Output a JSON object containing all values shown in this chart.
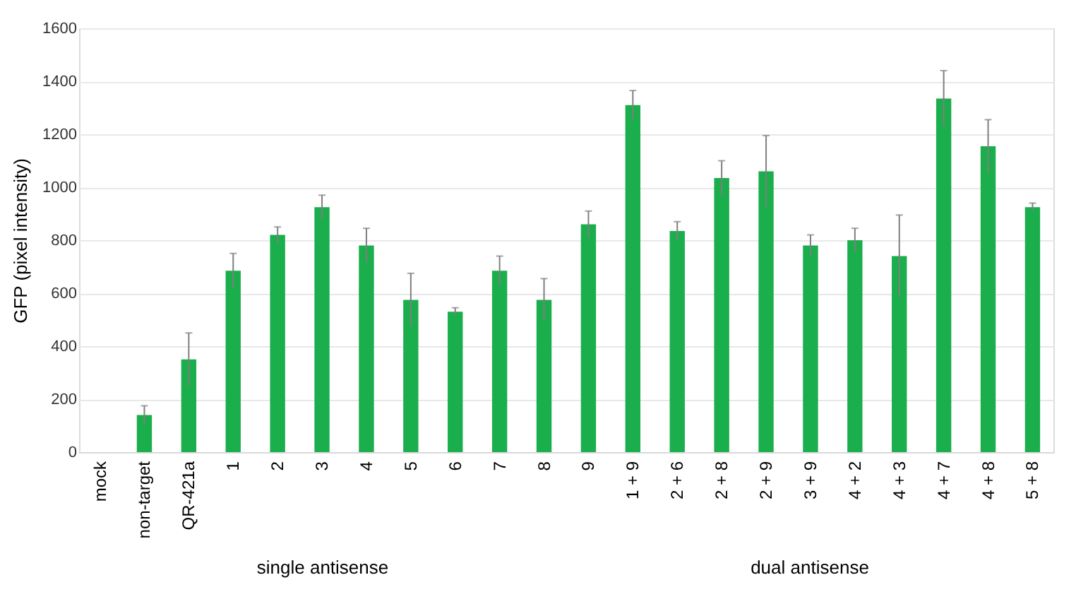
{
  "chart_data": {
    "type": "bar",
    "ylabel": "GFP (pixel intensity)",
    "categories": [
      "mock",
      "non-target",
      "QR-421a",
      "1",
      "2",
      "3",
      "4",
      "5",
      "6",
      "7",
      "8",
      "9",
      "1 + 9",
      "2 + 6",
      "2 + 8",
      "2 + 9",
      "3 + 9",
      "4 + 2",
      "4 + 3",
      "4 + 7",
      "4 + 8",
      "5 + 8"
    ],
    "values": [
      0,
      140,
      350,
      685,
      820,
      925,
      780,
      575,
      530,
      685,
      575,
      860,
      1310,
      835,
      1035,
      1060,
      780,
      800,
      740,
      1335,
      1155,
      925
    ],
    "errors": [
      null,
      35,
      100,
      65,
      30,
      45,
      65,
      100,
      15,
      55,
      80,
      50,
      55,
      35,
      65,
      135,
      40,
      45,
      155,
      105,
      100,
      15
    ],
    "color": "#1aae4c",
    "ylim": [
      0,
      1600
    ],
    "yticks": [
      0,
      200,
      400,
      600,
      800,
      1000,
      1200,
      1400,
      1600
    ],
    "grid": "y",
    "annotations": [
      "single antisense",
      "dual antisense"
    ]
  }
}
